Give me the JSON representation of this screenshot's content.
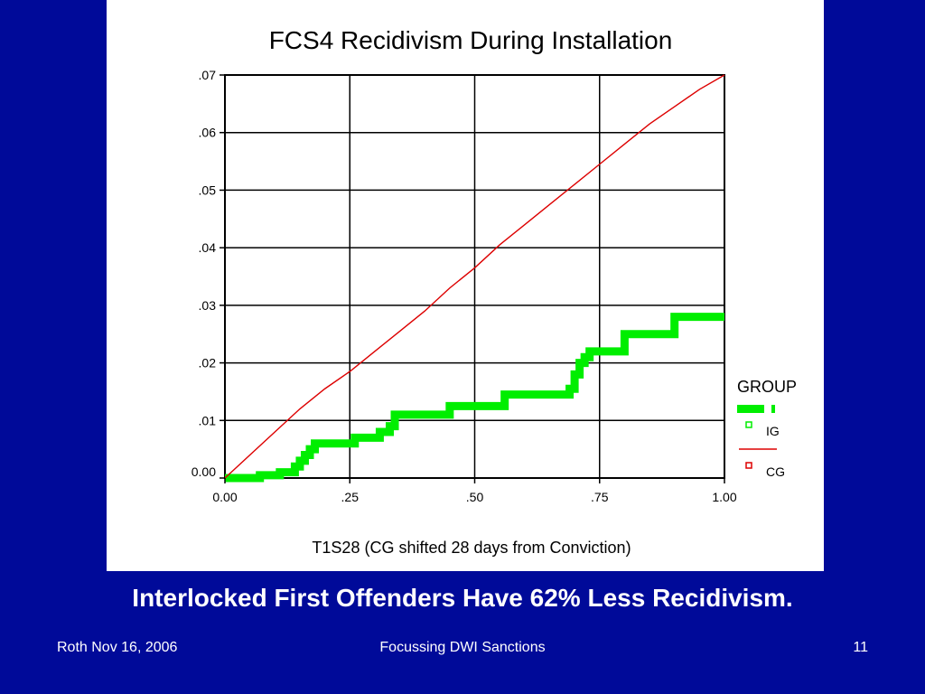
{
  "slide": {
    "headline": "Interlocked First Offenders Have 62% Less Recidivism.",
    "footer_left": "Roth Nov 16, 2006",
    "footer_center": "Focussing DWI Sanctions",
    "footer_right": "11"
  },
  "chart_data": {
    "type": "line",
    "title": "FCS4 Recidivism During Installation",
    "xlabel": "T1S28 (CG shifted 28 days from Conviction)",
    "ylabel": "",
    "xlim": [
      0,
      1
    ],
    "ylim": [
      0,
      0.07
    ],
    "x_ticks": [
      0,
      0.25,
      0.5,
      0.75,
      1.0
    ],
    "x_tick_labels": [
      "0.00",
      ".25",
      ".50",
      ".75",
      "1.00"
    ],
    "y_ticks": [
      0,
      0.01,
      0.02,
      0.03,
      0.04,
      0.05,
      0.06,
      0.07
    ],
    "y_tick_labels": [
      "0.00",
      ".01",
      ".02",
      ".03",
      ".04",
      ".05",
      ".06",
      ".07"
    ],
    "grid": true,
    "legend": {
      "title": "GROUP",
      "placement": "right"
    },
    "series": [
      {
        "name": "IG",
        "color": "#00ee00",
        "style": "step",
        "x": [
          0,
          0.07,
          0.11,
          0.14,
          0.15,
          0.16,
          0.17,
          0.18,
          0.25,
          0.26,
          0.3,
          0.31,
          0.33,
          0.34,
          0.44,
          0.45,
          0.55,
          0.56,
          0.68,
          0.69,
          0.7,
          0.71,
          0.72,
          0.73,
          0.79,
          0.8,
          0.89,
          0.9,
          1.0
        ],
        "y": [
          0,
          0.0005,
          0.001,
          0.002,
          0.003,
          0.004,
          0.005,
          0.006,
          0.006,
          0.007,
          0.007,
          0.008,
          0.009,
          0.011,
          0.011,
          0.0125,
          0.0125,
          0.0145,
          0.0145,
          0.0155,
          0.018,
          0.02,
          0.021,
          0.022,
          0.022,
          0.025,
          0.025,
          0.028,
          0.028
        ]
      },
      {
        "name": "CG",
        "color": "#dd0000",
        "style": "line",
        "x": [
          0,
          0.05,
          0.1,
          0.15,
          0.2,
          0.25,
          0.3,
          0.35,
          0.4,
          0.45,
          0.5,
          0.55,
          0.6,
          0.65,
          0.7,
          0.75,
          0.8,
          0.85,
          0.9,
          0.95,
          1.0
        ],
        "y": [
          0,
          0.004,
          0.008,
          0.012,
          0.0155,
          0.0185,
          0.022,
          0.0255,
          0.029,
          0.033,
          0.0365,
          0.0405,
          0.044,
          0.0475,
          0.051,
          0.0545,
          0.058,
          0.0615,
          0.0645,
          0.0675,
          0.07
        ]
      }
    ]
  }
}
